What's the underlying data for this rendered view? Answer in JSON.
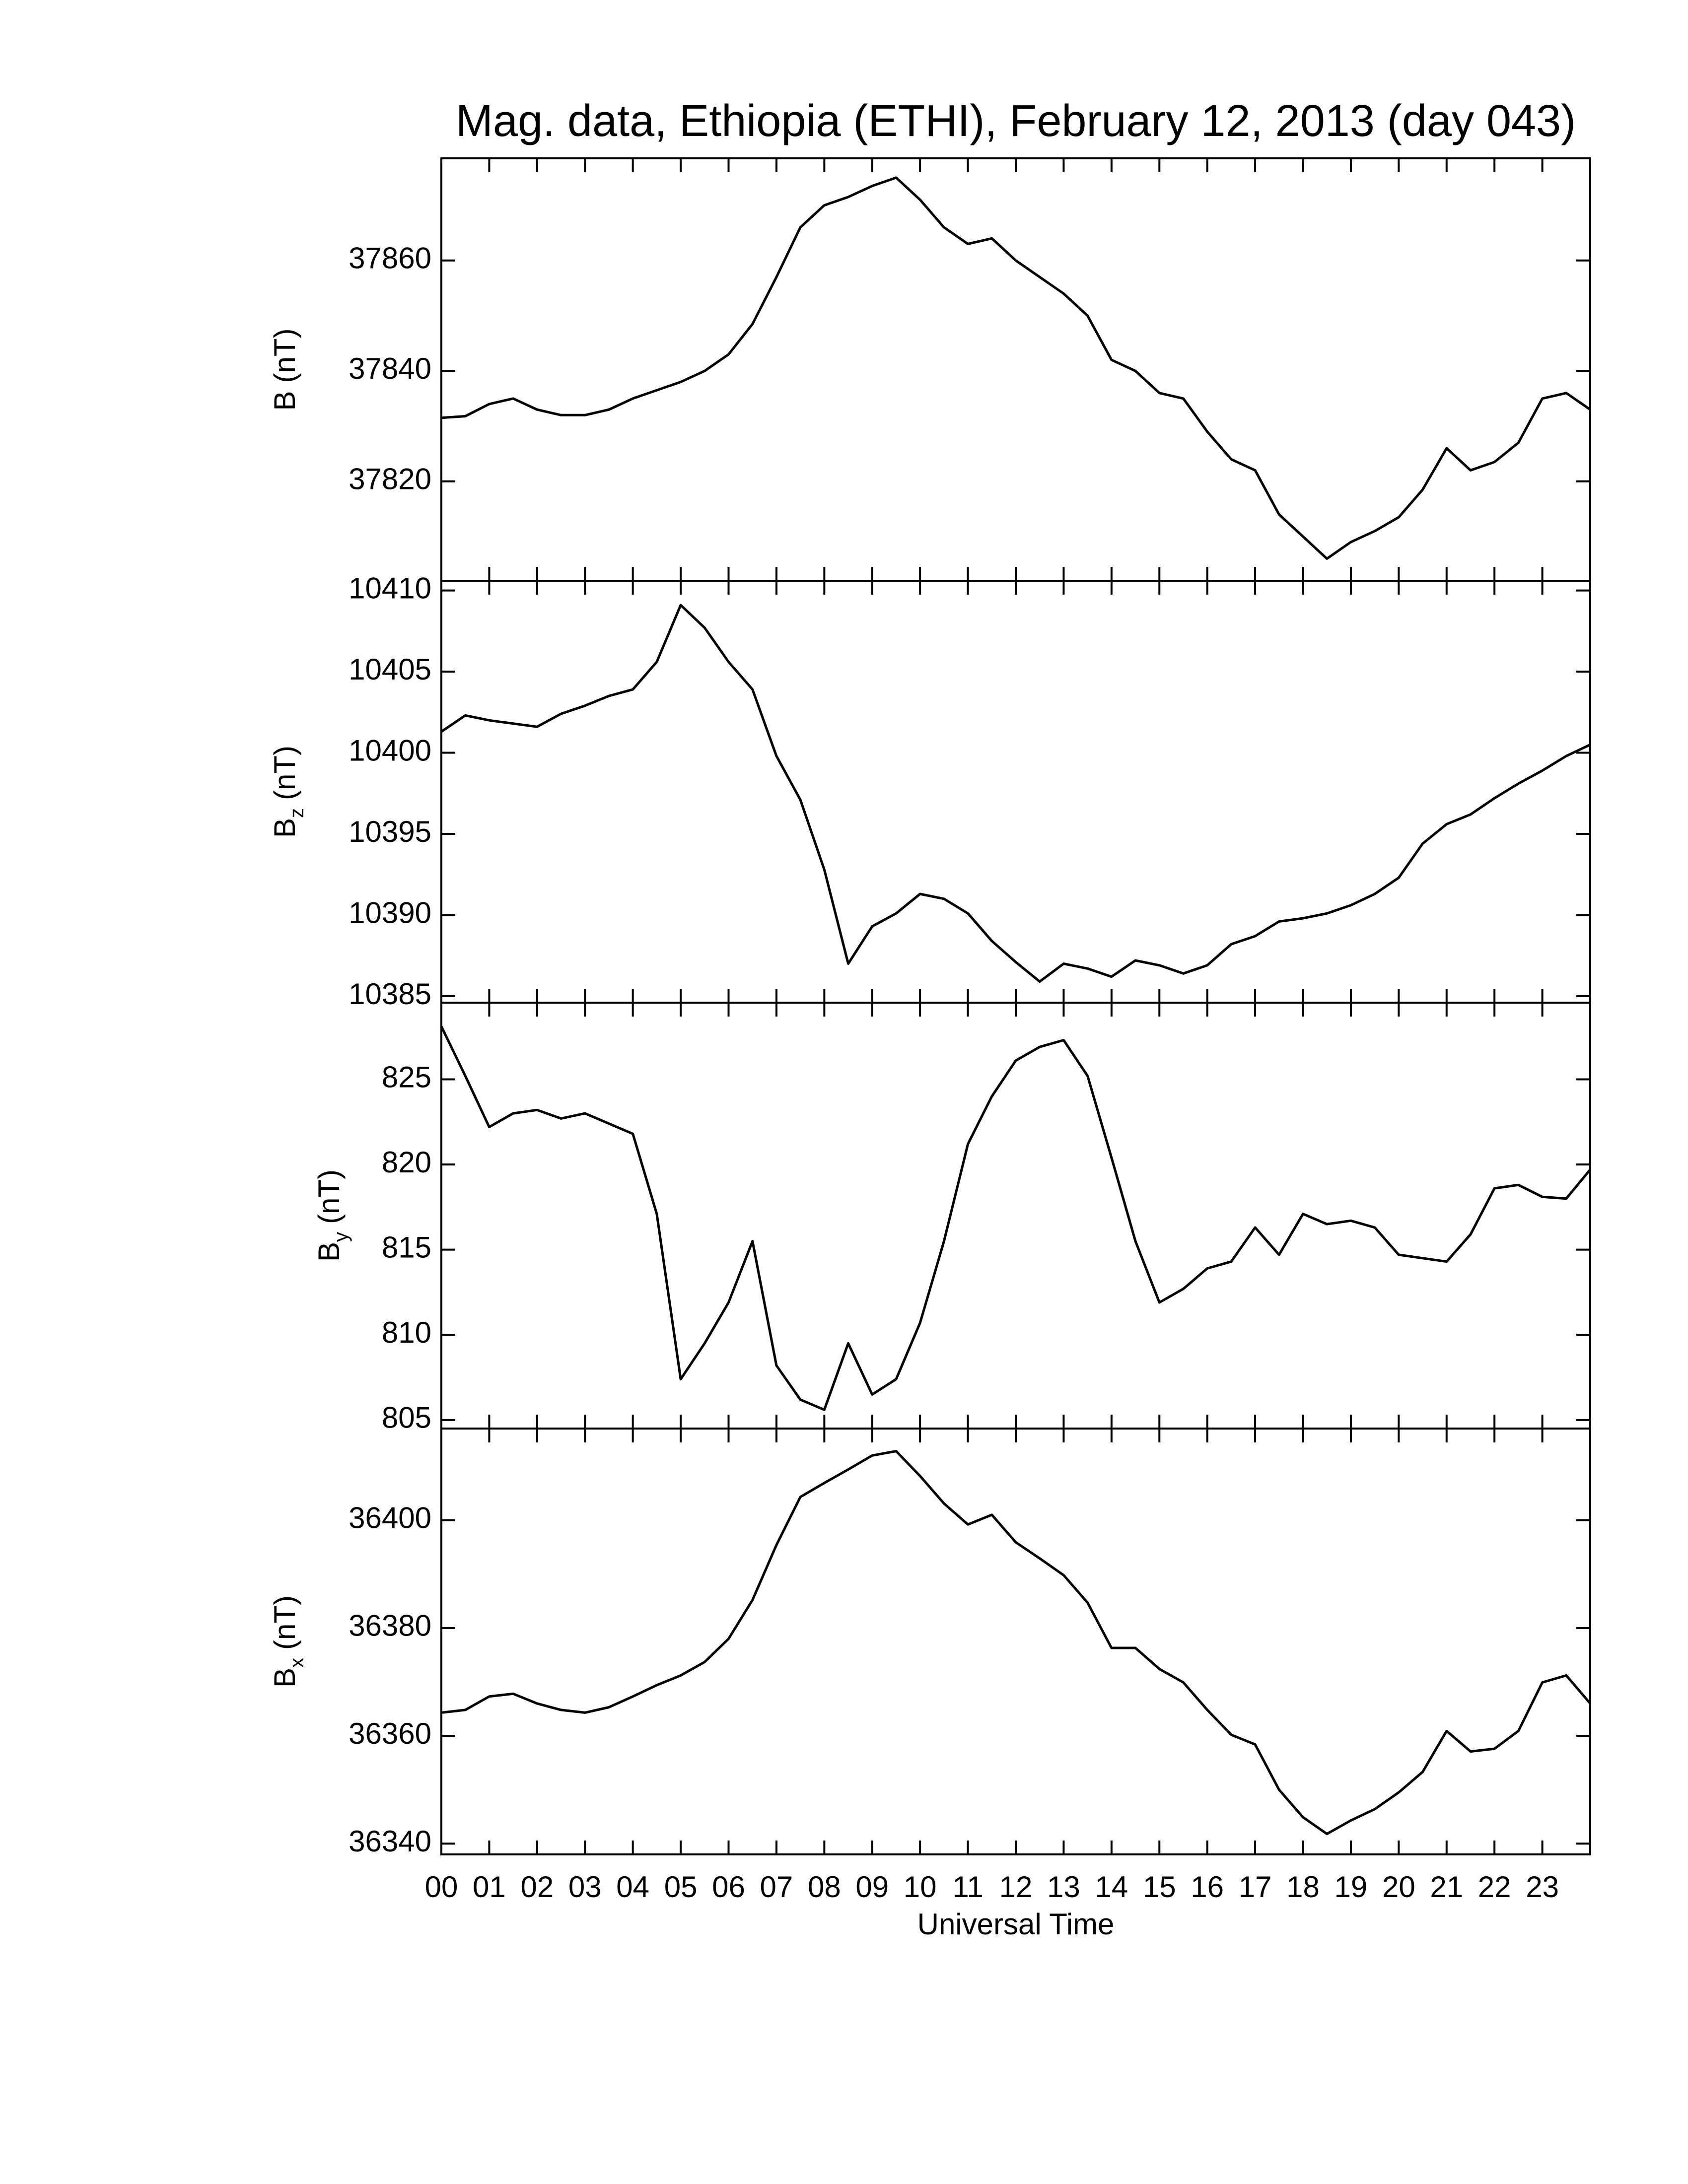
{
  "chart_data": [
    {
      "type": "line",
      "title": "Mag. data, Ethiopia (ETHI), February 12, 2013 (day 043)",
      "ylabel": "B",
      "ylabel_unit": "(nT)",
      "color": "#000000",
      "ylim": [
        37802,
        37878.5
      ],
      "yticks": [
        37820,
        37840,
        37860
      ],
      "xlim": [
        0,
        24
      ],
      "x": [
        0,
        0.5,
        1,
        1.5,
        2,
        2.5,
        3,
        3.5,
        4,
        4.5,
        5,
        5.5,
        6,
        6.5,
        7,
        7.5,
        8,
        8.5,
        9,
        9.5,
        10,
        10.5,
        11,
        11.5,
        12,
        12.5,
        13,
        13.5,
        14,
        14.5,
        15,
        15.5,
        16,
        16.5,
        17,
        17.5,
        18,
        18.5,
        19,
        19.5,
        20,
        20.5,
        21,
        21.5,
        22,
        22.5,
        23,
        23.5,
        24
      ],
      "values": [
        37831.5,
        37831.8,
        37834,
        37835,
        37833,
        37832,
        37832,
        37833,
        37835,
        37836.5,
        37838,
        37840,
        37843,
        37848.5,
        37857,
        37866,
        37870,
        37871.5,
        37873.5,
        37875,
        37871,
        37866,
        37863,
        37864,
        37860,
        37857,
        37854,
        37850,
        37842,
        37840,
        37836,
        37835,
        37829,
        37824,
        37822,
        37814,
        37810,
        37806,
        37809,
        37811,
        37813.5,
        37818.5,
        37826,
        37822,
        37823.5,
        37827,
        37835,
        37836,
        37833
      ]
    },
    {
      "type": "line",
      "ylabel": "B",
      "ylabel_sub": "z",
      "ylabel_unit": "(nT)",
      "color": "#000000",
      "ylim": [
        10384.6,
        10410.6
      ],
      "yticks": [
        10385,
        10390,
        10395,
        10400,
        10405,
        10410
      ],
      "xlim": [
        0,
        24
      ],
      "x": [
        0,
        0.5,
        1,
        1.5,
        2,
        2.5,
        3,
        3.5,
        4,
        4.5,
        5,
        5.5,
        6,
        6.5,
        7,
        7.5,
        8,
        8.5,
        9,
        9.5,
        10,
        10.5,
        11,
        11.5,
        12,
        12.5,
        13,
        13.5,
        14,
        14.5,
        15,
        15.5,
        16,
        16.5,
        17,
        17.5,
        18,
        18.5,
        19,
        19.5,
        20,
        20.5,
        21,
        21.5,
        22,
        22.5,
        23,
        23.5,
        24
      ],
      "values": [
        10401.3,
        10402.3,
        10402,
        10401.8,
        10401.6,
        10402.4,
        10402.9,
        10403.5,
        10403.9,
        10405.6,
        10409.1,
        10407.7,
        10405.6,
        10403.9,
        10399.8,
        10397.1,
        10392.8,
        10387,
        10389.3,
        10390.1,
        10391.3,
        10391,
        10390.1,
        10388.4,
        10387.1,
        10385.9,
        10387,
        10386.7,
        10386.2,
        10387.2,
        10386.9,
        10386.4,
        10386.9,
        10388.2,
        10388.7,
        10389.6,
        10389.8,
        10390.1,
        10390.6,
        10391.3,
        10392.3,
        10394.4,
        10395.6,
        10396.2,
        10397.2,
        10398.1,
        10398.9,
        10399.8,
        10400.5
      ]
    },
    {
      "type": "line",
      "ylabel": "B",
      "ylabel_sub": "y",
      "ylabel_unit": "(nT)",
      "color": "#000000",
      "ylim": [
        804.5,
        829.5
      ],
      "yticks": [
        805,
        810,
        815,
        820,
        825
      ],
      "xlim": [
        0,
        24
      ],
      "x": [
        0,
        0.5,
        1,
        1.5,
        2,
        2.5,
        3,
        3.5,
        4,
        4.5,
        5,
        5.5,
        6,
        6.5,
        7,
        7.5,
        8,
        8.5,
        9,
        9.5,
        10,
        10.5,
        11,
        11.5,
        12,
        12.5,
        13,
        13.5,
        14,
        14.5,
        15,
        15.5,
        16,
        16.5,
        17,
        17.5,
        18,
        18.5,
        19,
        19.5,
        20,
        20.5,
        21,
        21.5,
        22,
        22.5,
        23,
        23.5,
        24
      ],
      "values": [
        828.1,
        825.2,
        822.2,
        823,
        823.2,
        822.7,
        823,
        822.4,
        821.8,
        817.1,
        807.4,
        809.5,
        811.9,
        815.5,
        808.2,
        806.2,
        805.6,
        809.5,
        806.5,
        807.4,
        810.7,
        815.5,
        821.2,
        824,
        826.1,
        826.9,
        827.3,
        825.2,
        820.4,
        815.5,
        811.9,
        812.7,
        813.9,
        814.3,
        816.3,
        814.7,
        817.1,
        816.5,
        816.7,
        816.3,
        814.7,
        814.5,
        814.3,
        815.9,
        818.6,
        818.8,
        818.1,
        818,
        819.7
      ]
    },
    {
      "type": "line",
      "ylabel": "B",
      "ylabel_sub": "x",
      "ylabel_unit": "(nT)",
      "color": "#000000",
      "xlabel": "Universal Time",
      "ylim": [
        36338,
        36417
      ],
      "yticks": [
        36340,
        36360,
        36380,
        36400
      ],
      "xlim": [
        0,
        24
      ],
      "xticks": [
        {
          "value": 0,
          "label": "00"
        },
        {
          "value": 1,
          "label": "01"
        },
        {
          "value": 2,
          "label": "02"
        },
        {
          "value": 3,
          "label": "03"
        },
        {
          "value": 4,
          "label": "04"
        },
        {
          "value": 5,
          "label": "05"
        },
        {
          "value": 6,
          "label": "06"
        },
        {
          "value": 7,
          "label": "07"
        },
        {
          "value": 8,
          "label": "08"
        },
        {
          "value": 9,
          "label": "09"
        },
        10,
        11,
        12,
        13,
        14,
        15,
        16,
        17,
        18,
        19,
        20,
        21,
        22,
        23
      ],
      "x": [
        0,
        0.5,
        1,
        1.5,
        2,
        2.5,
        3,
        3.5,
        4,
        4.5,
        5,
        5.5,
        6,
        6.5,
        7,
        7.5,
        8,
        8.5,
        9,
        9.5,
        10,
        10.5,
        11,
        11.5,
        12,
        12.5,
        13,
        13.5,
        14,
        14.5,
        15,
        15.5,
        16,
        16.5,
        17,
        17.5,
        18,
        18.5,
        19,
        19.5,
        20,
        20.5,
        21,
        21.5,
        22,
        22.5,
        23,
        23.5,
        24
      ],
      "values": [
        36364.3,
        36364.8,
        36367.3,
        36367.8,
        36366,
        36364.8,
        36364.3,
        36365.3,
        36367.3,
        36369.4,
        36371.2,
        36373.7,
        36378,
        36385.2,
        36395.4,
        36404.3,
        36406.9,
        36409.4,
        36412,
        36412.8,
        36408.2,
        36403.1,
        36399.2,
        36401,
        36395.9,
        36392.9,
        36389.8,
        36384.7,
        36376.3,
        36376.3,
        36372.4,
        36369.9,
        36364.8,
        36360.2,
        36358.4,
        36350,
        36344.9,
        36341.8,
        36344.3,
        36346.4,
        36349.5,
        36353.3,
        36360.9,
        36357.1,
        36357.6,
        36360.9,
        36369.9,
        36371.2,
        36366
      ]
    }
  ]
}
